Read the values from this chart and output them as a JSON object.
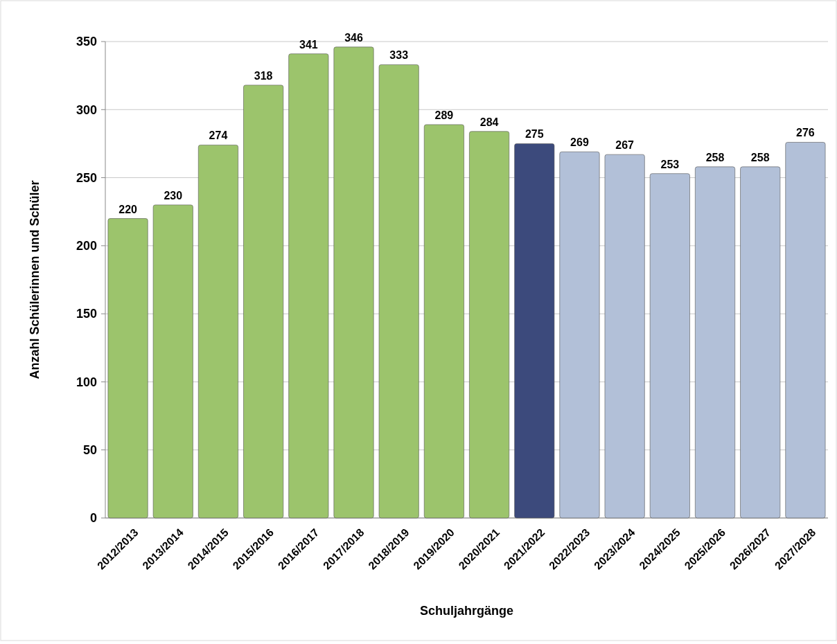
{
  "chart_data": {
    "type": "bar",
    "xlabel": "Schuljahrgänge",
    "ylabel": "Anzahl Schülerinnen und Schüler",
    "categories": [
      "2012/2013",
      "2013/2014",
      "2014/2015",
      "2015/2016",
      "2016/2017",
      "2017/2018",
      "2018/2019",
      "2019/2020",
      "2020/2021",
      "2021/2022",
      "2022/2023",
      "2023/2024",
      "2024/2025",
      "2025/2026",
      "2026/2027",
      "2027/2028"
    ],
    "values": [
      220,
      230,
      274,
      318,
      341,
      346,
      333,
      289,
      284,
      275,
      269,
      267,
      253,
      258,
      258,
      276
    ],
    "colors": [
      "#9cc46c",
      "#9cc46c",
      "#9cc46c",
      "#9cc46c",
      "#9cc46c",
      "#9cc46c",
      "#9cc46c",
      "#9cc46c",
      "#9cc46c",
      "#3c4a7c",
      "#b2c0d8",
      "#b2c0d8",
      "#b2c0d8",
      "#b2c0d8",
      "#b2c0d8",
      "#b2c0d8"
    ],
    "ylim": [
      0,
      350
    ],
    "yticks": [
      0,
      50,
      100,
      150,
      200,
      250,
      300,
      350
    ],
    "grid": "y",
    "data_labels": true
  }
}
